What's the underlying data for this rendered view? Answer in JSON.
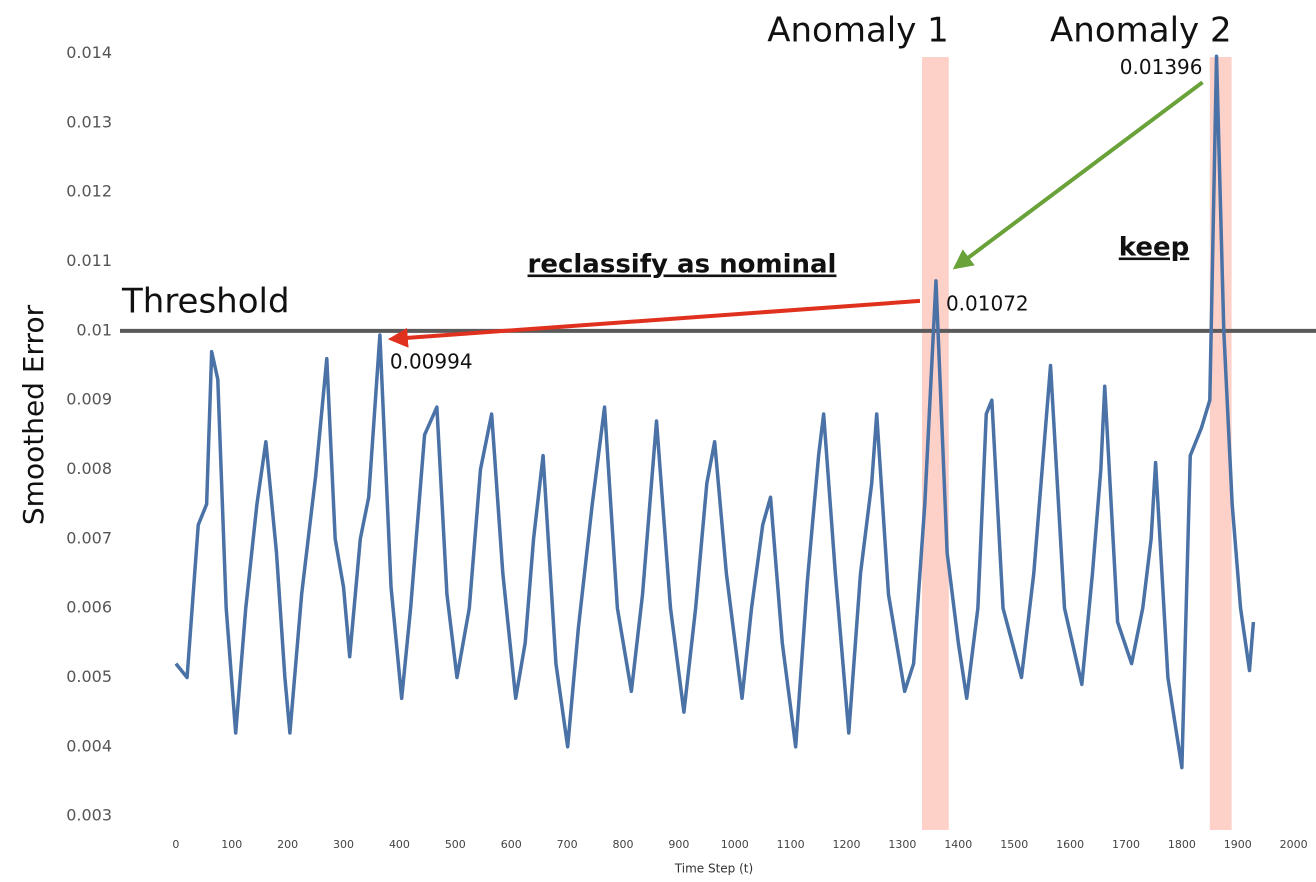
{
  "chart_data": {
    "type": "line",
    "y_label": "Smoothed Error",
    "x_label": "Time Step (t)",
    "color": "#4a72a6",
    "xlim": [
      -100,
      2040
    ],
    "ylim": [
      0.0028,
      0.0147
    ],
    "xticks": [
      0,
      100,
      200,
      300,
      400,
      500,
      600,
      700,
      800,
      900,
      1000,
      1100,
      1200,
      1300,
      1400,
      1500,
      1600,
      1700,
      1800,
      1900,
      2000
    ],
    "yticks": [
      0.003,
      0.004,
      0.005,
      0.006,
      0.007,
      0.008,
      0.009,
      0.01,
      0.011,
      0.012,
      0.013,
      0.014
    ],
    "x": [
      0,
      20,
      40,
      55,
      64,
      75,
      90,
      107,
      125,
      145,
      161,
      180,
      195,
      204,
      225,
      250,
      270,
      285,
      300,
      311,
      330,
      345,
      365,
      385,
      404,
      420,
      445,
      467,
      485,
      503,
      525,
      545,
      565,
      585,
      608,
      625,
      640,
      657,
      680,
      701,
      720,
      745,
      767,
      790,
      815,
      835,
      860,
      885,
      909,
      930,
      950,
      964,
      985,
      1013,
      1030,
      1050,
      1064,
      1085,
      1109,
      1130,
      1150,
      1159,
      1180,
      1204,
      1225,
      1245,
      1254,
      1275,
      1304,
      1320,
      1340,
      1360,
      1380,
      1400,
      1415,
      1435,
      1450,
      1460,
      1480,
      1513,
      1535,
      1555,
      1565,
      1590,
      1621,
      1640,
      1655,
      1662,
      1685,
      1710,
      1730,
      1745,
      1753,
      1775,
      1800,
      1815,
      1835,
      1850,
      1862,
      1875,
      1890,
      1905,
      1921,
      1928
    ],
    "values": [
      0.0052,
      0.005,
      0.0072,
      0.0075,
      0.0097,
      0.0093,
      0.006,
      0.0042,
      0.006,
      0.0075,
      0.0084,
      0.0068,
      0.005,
      0.0042,
      0.0062,
      0.0079,
      0.0096,
      0.007,
      0.0063,
      0.0053,
      0.007,
      0.0076,
      0.00994,
      0.0063,
      0.0047,
      0.006,
      0.0085,
      0.0089,
      0.0062,
      0.005,
      0.006,
      0.008,
      0.0088,
      0.0065,
      0.0047,
      0.0055,
      0.007,
      0.0082,
      0.0052,
      0.004,
      0.0057,
      0.0075,
      0.0089,
      0.006,
      0.0048,
      0.0062,
      0.0087,
      0.006,
      0.0045,
      0.006,
      0.0078,
      0.0084,
      0.0065,
      0.0047,
      0.006,
      0.0072,
      0.0076,
      0.0055,
      0.004,
      0.0064,
      0.0082,
      0.0088,
      0.0065,
      0.0042,
      0.0065,
      0.0078,
      0.0088,
      0.0062,
      0.0048,
      0.0052,
      0.0075,
      0.01072,
      0.0068,
      0.0055,
      0.0047,
      0.006,
      0.0088,
      0.009,
      0.006,
      0.005,
      0.0065,
      0.0085,
      0.0095,
      0.006,
      0.0049,
      0.0065,
      0.008,
      0.0092,
      0.0058,
      0.0052,
      0.006,
      0.007,
      0.0081,
      0.005,
      0.0037,
      0.0082,
      0.0086,
      0.009,
      0.01396,
      0.01,
      0.0075,
      0.006,
      0.0051,
      0.0058
    ],
    "threshold": {
      "value": 0.01,
      "label": "Threshold"
    },
    "anomalies": [
      {
        "label": "Anomaly 1",
        "xlim": [
          1335,
          1383
        ]
      },
      {
        "label": "Anomaly 2",
        "xlim": [
          1850,
          1889
        ]
      }
    ],
    "peak_labels": [
      {
        "value": 0.00994,
        "label": "0.00994"
      },
      {
        "value": 0.01072,
        "label": "0.01072"
      },
      {
        "value": 0.01396,
        "label": "0.01396"
      }
    ],
    "annotations": [
      "reclassify as nominal",
      "keep"
    ]
  }
}
